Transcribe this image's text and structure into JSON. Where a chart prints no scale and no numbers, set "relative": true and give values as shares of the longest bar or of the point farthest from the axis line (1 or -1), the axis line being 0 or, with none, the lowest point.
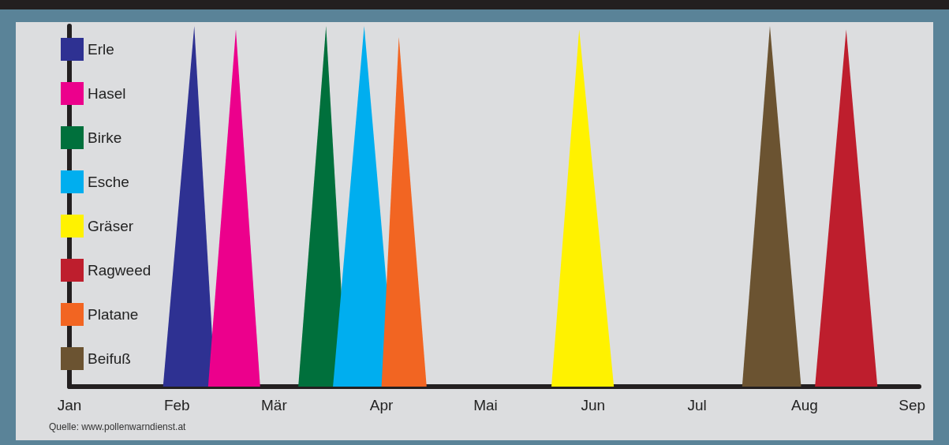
{
  "chart_data": {
    "type": "area",
    "relative": true,
    "series": [
      {
        "name": "Erle",
        "color": "#2e3192",
        "x": [
          "--01-28",
          "--02-06",
          "--02-12"
        ],
        "values": [
          0,
          1,
          0
        ]
      },
      {
        "name": "Hasel",
        "color": "#ec008c",
        "x": [
          "--02-10",
          "--02-18",
          "--02-25"
        ],
        "values": [
          0,
          0.99,
          0
        ]
      },
      {
        "name": "Birke",
        "color": "#00703c",
        "x": [
          "--03-08",
          "--03-16",
          "--03-22"
        ],
        "values": [
          0,
          1,
          0
        ]
      },
      {
        "name": "Esche",
        "color": "#00aeef",
        "x": [
          "--03-18",
          "--03-27",
          "--04-05"
        ],
        "values": [
          0,
          1,
          0
        ]
      },
      {
        "name": "Gräser",
        "color": "#fff200",
        "x": [
          "--05-20",
          "--05-28",
          "--06-07"
        ],
        "values": [
          0,
          0.99,
          0
        ]
      },
      {
        "name": "Ragweed",
        "color": "#be1e2d",
        "x": [
          "--08-04",
          "--08-13",
          "--08-22"
        ],
        "values": [
          0,
          0.99,
          0
        ]
      },
      {
        "name": "Platane",
        "color": "#f26522",
        "x": [
          "--04-01",
          "--04-06",
          "--04-14"
        ],
        "values": [
          0,
          0.97,
          0
        ]
      },
      {
        "name": "Beifuß",
        "color": "#6b5331",
        "x": [
          "--07-14",
          "--07-22",
          "--07-31"
        ],
        "values": [
          0,
          1,
          0
        ]
      }
    ],
    "xlim": [
      "--01-01",
      "--09-03"
    ],
    "xticks": [
      {
        "value": "--01-01",
        "label": "Jan"
      },
      {
        "value": "--02-01",
        "label": "Feb"
      },
      {
        "value": "--03-01",
        "label": "Mär"
      },
      {
        "value": "--04-01",
        "label": "Apr"
      },
      {
        "value": "--05-01",
        "label": "Mai"
      },
      {
        "value": "--06-01",
        "label": "Jun"
      },
      {
        "value": "--07-01",
        "label": "Jul"
      },
      {
        "value": "--08-01",
        "label": "Aug"
      },
      {
        "value": "--09-01",
        "label": "Sep"
      }
    ],
    "legend": "top left",
    "marker": "none",
    "annotations": [
      "Quelle: www.pollenwarndienst.at"
    ]
  }
}
